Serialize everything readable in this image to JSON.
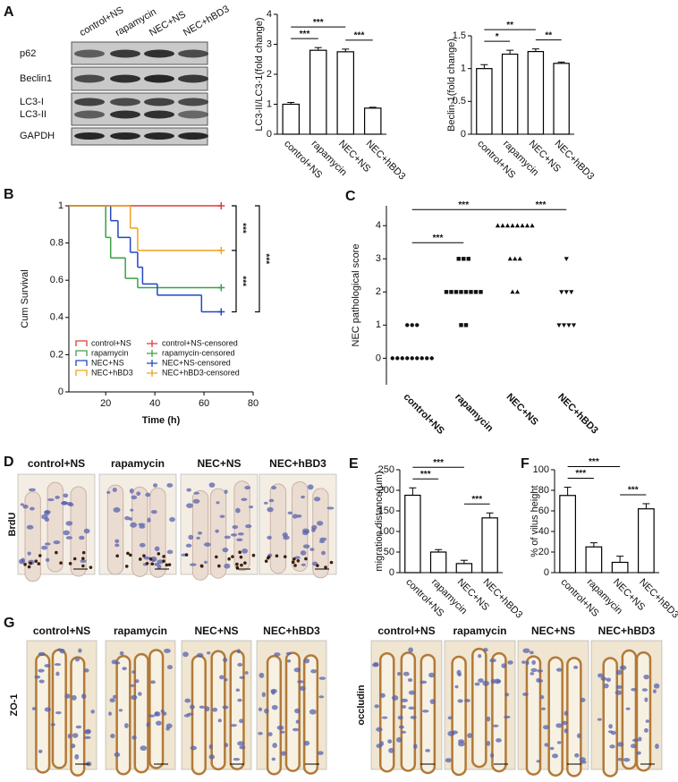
{
  "panel_labels": [
    "A",
    "B",
    "C",
    "D",
    "E",
    "F",
    "G"
  ],
  "blot": {
    "lanes": [
      "control+NS",
      "rapamycin",
      "NEC+NS",
      "NEC+hBD3"
    ],
    "rows": [
      "p62",
      "Beclin1",
      "LC3-I",
      "LC3-II",
      "GAPDH"
    ]
  },
  "chart_data": [
    {
      "type": "bar",
      "ylabel": "LC3-II/LC3-1(fold change)",
      "categories": [
        "control+NS",
        "rapamycin",
        "NEC+NS",
        "NEC+hBD3"
      ],
      "values": [
        1.0,
        2.8,
        2.75,
        0.87
      ],
      "errors": [
        0.06,
        0.09,
        0.09,
        0.03
      ],
      "ylim": [
        0,
        4
      ],
      "yticks": [
        0,
        1,
        2,
        3,
        4
      ],
      "comparisons": [
        {
          "groups": [
            "control+NS",
            "rapamycin"
          ],
          "label": "***"
        },
        {
          "groups": [
            "control+NS",
            "NEC+NS"
          ],
          "label": "***"
        },
        {
          "groups": [
            "NEC+NS",
            "NEC+hBD3"
          ],
          "label": "***"
        }
      ]
    },
    {
      "type": "bar",
      "ylabel": "Beclin-1(fold change)",
      "categories": [
        "control+NS",
        "rapamycin",
        "NEC+NS",
        "NEC+hBD3"
      ],
      "values": [
        1.0,
        1.22,
        1.26,
        1.08
      ],
      "errors": [
        0.06,
        0.06,
        0.04,
        0.02
      ],
      "ylim": [
        0,
        1.5
      ],
      "yticks": [
        0,
        0.5,
        1,
        1.5
      ],
      "comparisons": [
        {
          "groups": [
            "control+NS",
            "rapamycin"
          ],
          "label": "*"
        },
        {
          "groups": [
            "control+NS",
            "NEC+NS"
          ],
          "label": "**"
        },
        {
          "groups": [
            "NEC+NS",
            "NEC+hBD3"
          ],
          "label": "**"
        }
      ]
    },
    {
      "type": "step",
      "xlabel": "Time (h)",
      "ylabel": "Cum Survival",
      "xlim": [
        5,
        80
      ],
      "xticks": [
        20,
        40,
        60,
        80
      ],
      "ylim": [
        0,
        1
      ],
      "yticks": [
        0,
        0.2,
        0.4,
        0.6,
        0.8,
        1
      ],
      "series": [
        {
          "name": "control+NS",
          "censor_label": "control+NS-censored",
          "color": "#e03a3a",
          "x": [
            5,
            67
          ],
          "values": [
            1,
            1
          ]
        },
        {
          "name": "rapamycin",
          "censor_label": "rapamycin-censored",
          "color": "#3aa045",
          "x": [
            5,
            20,
            22,
            28,
            33,
            67
          ],
          "values": [
            1,
            0.83,
            0.72,
            0.61,
            0.56,
            0.56
          ]
        },
        {
          "name": "NEC+NS",
          "censor_label": "NEC+NS-censored",
          "color": "#2346c4",
          "x": [
            5,
            22,
            25,
            30,
            33,
            35,
            41,
            59,
            67
          ],
          "values": [
            1,
            0.92,
            0.83,
            0.75,
            0.67,
            0.58,
            0.52,
            0.43,
            0.43
          ]
        },
        {
          "name": "NEC+hBD3",
          "censor_label": "NEC+hBD3-censored",
          "color": "#f0a020",
          "x": [
            5,
            30,
            33,
            67
          ],
          "values": [
            1,
            0.88,
            0.76,
            0.76
          ]
        }
      ],
      "comparisons": [
        {
          "groups": [
            "control+NS",
            "NEC+hBD3"
          ],
          "label": "***"
        },
        {
          "groups": [
            "NEC+hBD3",
            "NEC+NS"
          ],
          "label": "***"
        },
        {
          "groups": [
            "control+NS",
            "NEC+NS"
          ],
          "label": "***"
        }
      ]
    },
    {
      "type": "dot",
      "ylabel": "NEC pathological score",
      "categories": [
        "control+NS",
        "rapamycin",
        "NEC+NS",
        "NEC+hBD3"
      ],
      "values": [
        [
          0,
          0,
          0,
          0,
          0,
          0,
          0,
          0,
          0,
          1,
          1,
          1
        ],
        [
          3,
          3,
          3,
          2,
          2,
          2,
          2,
          2,
          2,
          2,
          2,
          1,
          1
        ],
        [
          4,
          4,
          4,
          4,
          4,
          4,
          4,
          4,
          3,
          3,
          3,
          2,
          2
        ],
        [
          3,
          2,
          2,
          2,
          1,
          1,
          1,
          1
        ]
      ],
      "markers": [
        "circle",
        "square",
        "triangle",
        "triangle-down"
      ],
      "ylim": [
        -0.8,
        4.6
      ],
      "yticks": [
        0,
        1,
        2,
        3,
        4
      ],
      "comparisons": [
        {
          "groups": [
            "control+NS",
            "rapamycin"
          ],
          "label": "***"
        },
        {
          "groups": [
            "control+NS",
            "NEC+NS"
          ],
          "label": "***"
        },
        {
          "groups": [
            "NEC+NS",
            "NEC+hBD3"
          ],
          "label": "***"
        }
      ]
    },
    {
      "type": "bar",
      "ylabel": "migration distance(μm)",
      "categories": [
        "control+NS",
        "rapamycin",
        "NEC+NS",
        "NEC+hBD3"
      ],
      "values": [
        188,
        50,
        22,
        133
      ],
      "errors": [
        18,
        6,
        8,
        12
      ],
      "ylim": [
        0,
        250
      ],
      "yticks": [
        0,
        50,
        100,
        150,
        200,
        250
      ],
      "comparisons": [
        {
          "groups": [
            "control+NS",
            "rapamycin"
          ],
          "label": "***"
        },
        {
          "groups": [
            "control+NS",
            "NEC+NS"
          ],
          "label": "***"
        },
        {
          "groups": [
            "NEC+NS",
            "NEC+hBD3"
          ],
          "label": "***"
        }
      ]
    },
    {
      "type": "bar",
      "ylabel": "% of vilus height",
      "categories": [
        "control+NS",
        "rapamycin",
        "NEC+NS",
        "NEC+hBD3"
      ],
      "values": [
        75,
        25,
        10,
        62
      ],
      "errors": [
        8,
        4,
        6,
        5
      ],
      "ylim": [
        0,
        100
      ],
      "yticks": [
        0,
        20,
        40,
        60,
        80,
        100
      ],
      "comparisons": [
        {
          "groups": [
            "control+NS",
            "rapamycin"
          ],
          "label": "***"
        },
        {
          "groups": [
            "control+NS",
            "NEC+NS"
          ],
          "label": "***"
        },
        {
          "groups": [
            "NEC+NS",
            "NEC+hBD3"
          ],
          "label": "***"
        }
      ]
    }
  ],
  "micrographs": {
    "brdu": {
      "stain": "BrdU",
      "columns": [
        "control+NS",
        "rapamycin",
        "NEC+NS",
        "NEC+hBD3"
      ]
    },
    "zo1": {
      "stain": "ZO-1",
      "columns": [
        "control+NS",
        "rapamycin",
        "NEC+NS",
        "NEC+hBD3"
      ]
    },
    "occludin": {
      "stain": "occludin",
      "columns": [
        "control+NS",
        "rapamycin",
        "NEC+NS",
        "NEC+hBD3"
      ]
    }
  }
}
